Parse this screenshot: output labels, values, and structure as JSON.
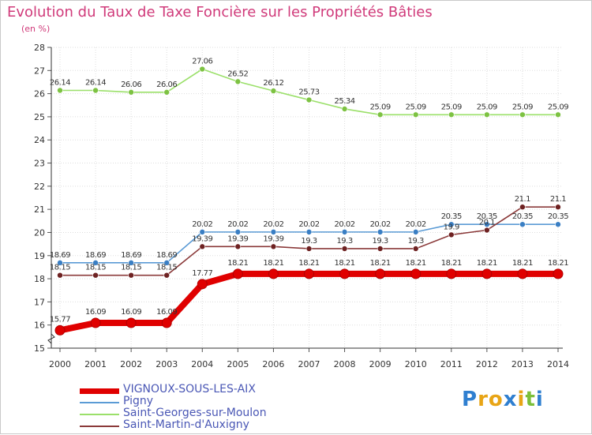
{
  "title": "Evolution du Taux de Taxe Foncière sur les Propriétés Bâties",
  "subtitle": "(en %)",
  "brand": {
    "text": "Proxiti",
    "letters": [
      "P",
      "r",
      "o",
      "x",
      "i",
      "t",
      "i"
    ],
    "colors": [
      "#2f7fd0",
      "#e8a516",
      "#e8a516",
      "#2f7fd0",
      "#e8a516",
      "#7bbf3a",
      "#2f7fd0"
    ]
  },
  "chart_data": {
    "type": "line",
    "title": "Evolution du Taux de Taxe Foncière sur les Propriétés Bâties",
    "ylabel": "(en %)",
    "x": [
      2000,
      2001,
      2002,
      2003,
      2004,
      2005,
      2006,
      2007,
      2008,
      2009,
      2010,
      2011,
      2012,
      2013,
      2014
    ],
    "ylim": [
      15,
      28
    ],
    "yticks": [
      15,
      16,
      17,
      18,
      19,
      20,
      21,
      22,
      23,
      24,
      25,
      26,
      27,
      28
    ],
    "grid": true,
    "series": [
      {
        "name": "VIGNOUX-SOUS-LES-AIX",
        "color": "#e00000",
        "highlight": true,
        "values": [
          15.77,
          16.09,
          16.09,
          16.09,
          17.77,
          18.21,
          18.21,
          18.21,
          18.21,
          18.21,
          18.21,
          18.21,
          18.21,
          18.21,
          18.21
        ],
        "labels": [
          "15.77",
          "16.09",
          "16.09",
          "16.09",
          "17.77",
          "18.21",
          "18.21",
          "18.21",
          "18.21",
          "18.21",
          "18.21",
          "18.21",
          "18.21",
          "18.21",
          "18.21"
        ]
      },
      {
        "name": "Pigny",
        "color": "#5b9bd5",
        "marker": "#3a7fc4",
        "values": [
          18.69,
          18.69,
          18.69,
          18.69,
          20.02,
          20.02,
          20.02,
          20.02,
          20.02,
          20.02,
          20.02,
          20.35,
          20.35,
          20.35,
          20.35
        ],
        "labels": [
          "18.69",
          "18.69",
          "18.69",
          "18.69",
          "20.02",
          "20.02",
          "20.02",
          "20.02",
          "20.02",
          "20.02",
          "20.02",
          "20.35",
          "20.35",
          "20.35",
          "20.35"
        ]
      },
      {
        "name": "Saint-Georges-sur-Moulon",
        "color": "#9be06a",
        "marker": "#7dc242",
        "values": [
          26.14,
          26.14,
          26.06,
          26.06,
          27.06,
          26.52,
          26.12,
          25.73,
          25.34,
          25.09,
          25.09,
          25.09,
          25.09,
          25.09,
          25.09
        ],
        "labels": [
          "26.14",
          "26.14",
          "26.06",
          "26.06",
          "27.06",
          "26.52",
          "26.12",
          "25.73",
          "25.34",
          "25.09",
          "25.09",
          "25.09",
          "25.09",
          "25.09",
          "25.09"
        ]
      },
      {
        "name": "Saint-Martin-d'Auxigny",
        "color": "#8b3a3a",
        "marker": "#6e2222",
        "values": [
          18.15,
          18.15,
          18.15,
          18.15,
          19.39,
          19.39,
          19.39,
          19.3,
          19.3,
          19.3,
          19.3,
          19.9,
          20.1,
          21.1,
          21.1
        ],
        "labels": [
          "18.15",
          "18.15",
          "18.15",
          "18.15",
          "19.39",
          "19.39",
          "19.39",
          "19.3",
          "19.3",
          "19.3",
          "19.3",
          "19.9",
          "20.1",
          "21.1",
          "21.1"
        ]
      }
    ]
  }
}
